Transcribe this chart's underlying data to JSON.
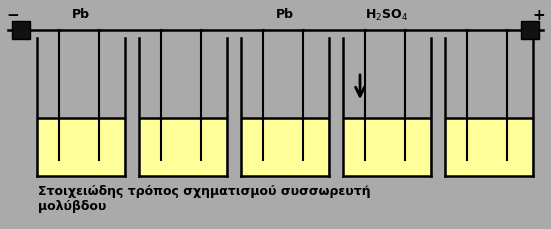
{
  "bg_color": "#AAAAAA",
  "liquid_color": "#FFFF99",
  "blk": "#000000",
  "terminal_color": "#111111",
  "title_line1": "Στοιχειώδης τρόπος σχηματισμού συσσωρευτή",
  "title_line2": "μολύβδου",
  "label_pb1": "Pb",
  "label_pb2": "Pb",
  "label_acid": "H$_2$SO$_4$",
  "label_minus": "−",
  "label_plus": "+",
  "figsize": [
    5.51,
    2.29
  ],
  "dpi": 100
}
